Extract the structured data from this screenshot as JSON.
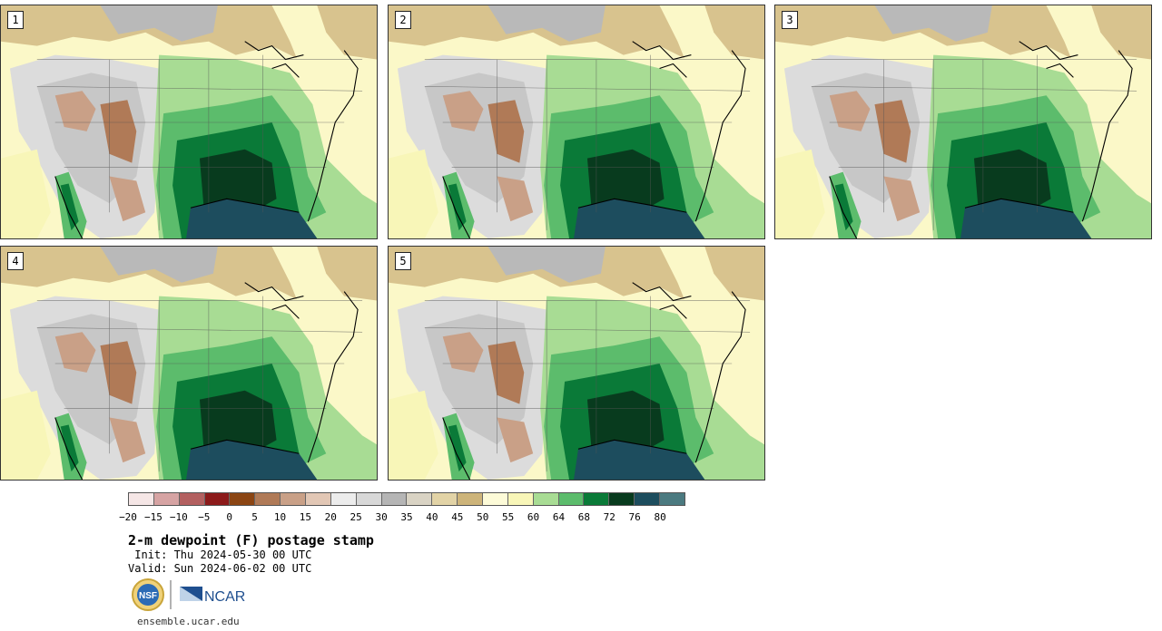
{
  "panels": [
    {
      "label": "1"
    },
    {
      "label": "2"
    },
    {
      "label": "3"
    },
    {
      "label": "4"
    },
    {
      "label": "5"
    }
  ],
  "colorbar": {
    "colors": [
      "#f5e6e6",
      "#d6a3a3",
      "#b36060",
      "#8c1a1a",
      "#8b4513",
      "#b07a57",
      "#c9a087",
      "#e2c7b5",
      "#ececec",
      "#d8d8d8",
      "#b5b5b5",
      "#d9d3c4",
      "#e2d3a6",
      "#cdb47a",
      "#fdfbd8",
      "#f8f6b8",
      "#a8dc94",
      "#5cbc6c",
      "#0a7a38",
      "#083b1e",
      "#1d4d5e",
      "#4b7a80"
    ],
    "tick_labels": [
      "−20",
      "−15",
      "−10",
      "−5",
      "0",
      "5",
      "10",
      "15",
      "20",
      "25",
      "30",
      "35",
      "40",
      "45",
      "50",
      "55",
      "60",
      "64",
      "68",
      "72",
      "76",
      "80"
    ]
  },
  "title": "2-m dewpoint (F) postage stamp",
  "init": " Init: Thu 2024-05-30 00 UTC",
  "valid": "Valid: Sun 2024-06-02 00 UTC",
  "logos": {
    "nsf": "NSF",
    "ncar": "NCAR"
  },
  "site": "ensemble.ucar.edu"
}
